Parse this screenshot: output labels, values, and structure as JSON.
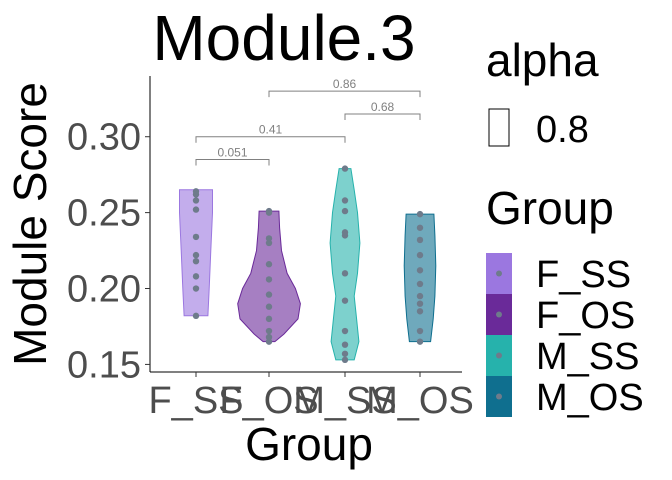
{
  "chart_data": {
    "type": "violin",
    "title": "Module.3",
    "xlabel": "Group",
    "ylabel": "Module Score",
    "categories": [
      "F_SS",
      "F_OS",
      "M_SS",
      "M_OS"
    ],
    "ylim": [
      0.145,
      0.34
    ],
    "yticks": [
      0.15,
      0.2,
      0.25,
      0.3
    ],
    "ytick_labels": [
      "0.15",
      "0.20",
      "0.25",
      "0.30"
    ],
    "colors": {
      "F_SS": "#9b77e0",
      "F_OS": "#6a2a99",
      "M_SS": "#26b2ac",
      "M_OS": "#0f6f8f"
    },
    "violins": [
      {
        "group": "F_SS",
        "min": 0.182,
        "max": 0.265,
        "profile": [
          [
            0.182,
            0.36
          ],
          [
            0.2,
            0.4
          ],
          [
            0.225,
            0.45
          ],
          [
            0.25,
            0.5
          ],
          [
            0.265,
            0.5
          ]
        ],
        "points": [
          0.182,
          0.2,
          0.208,
          0.218,
          0.222,
          0.234,
          0.252,
          0.258,
          0.262,
          0.264
        ]
      },
      {
        "group": "F_OS",
        "min": 0.165,
        "max": 0.251,
        "profile": [
          [
            0.165,
            0.18
          ],
          [
            0.17,
            0.45
          ],
          [
            0.18,
            0.88
          ],
          [
            0.19,
            0.95
          ],
          [
            0.2,
            0.8
          ],
          [
            0.21,
            0.55
          ],
          [
            0.225,
            0.38
          ],
          [
            0.24,
            0.32
          ],
          [
            0.251,
            0.3
          ]
        ],
        "points": [
          0.165,
          0.168,
          0.172,
          0.18,
          0.188,
          0.196,
          0.206,
          0.216,
          0.23,
          0.233,
          0.25,
          0.251
        ]
      },
      {
        "group": "M_SS",
        "min": 0.153,
        "max": 0.279,
        "profile": [
          [
            0.153,
            0.28
          ],
          [
            0.165,
            0.42
          ],
          [
            0.18,
            0.35
          ],
          [
            0.195,
            0.28
          ],
          [
            0.21,
            0.38
          ],
          [
            0.23,
            0.45
          ],
          [
            0.25,
            0.38
          ],
          [
            0.265,
            0.28
          ],
          [
            0.279,
            0.18
          ]
        ],
        "points": [
          0.153,
          0.157,
          0.163,
          0.172,
          0.192,
          0.21,
          0.235,
          0.237,
          0.251,
          0.258,
          0.279
        ]
      },
      {
        "group": "M_OS",
        "min": 0.165,
        "max": 0.249,
        "profile": [
          [
            0.165,
            0.32
          ],
          [
            0.18,
            0.4
          ],
          [
            0.195,
            0.45
          ],
          [
            0.215,
            0.48
          ],
          [
            0.235,
            0.45
          ],
          [
            0.249,
            0.42
          ]
        ],
        "points": [
          0.165,
          0.172,
          0.185,
          0.19,
          0.195,
          0.203,
          0.212,
          0.222,
          0.232,
          0.24,
          0.249
        ]
      }
    ],
    "comparisons": [
      {
        "from": "F_SS",
        "to": "F_OS",
        "y": 0.285,
        "label": "0.051"
      },
      {
        "from": "F_SS",
        "to": "M_SS",
        "y": 0.3,
        "label": "0.41"
      },
      {
        "from": "M_SS",
        "to": "M_OS",
        "y": 0.315,
        "label": "0.68"
      },
      {
        "from": "F_OS",
        "to": "M_OS",
        "y": 0.33,
        "label": "0.86"
      }
    ],
    "legend": {
      "alpha": {
        "title": "alpha",
        "entries": [
          "0.8"
        ]
      },
      "group": {
        "title": "Group",
        "entries": [
          "F_SS",
          "F_OS",
          "M_SS",
          "M_OS"
        ]
      },
      "placement": "right"
    },
    "grid": false,
    "point_color": "#6e7b8b"
  }
}
